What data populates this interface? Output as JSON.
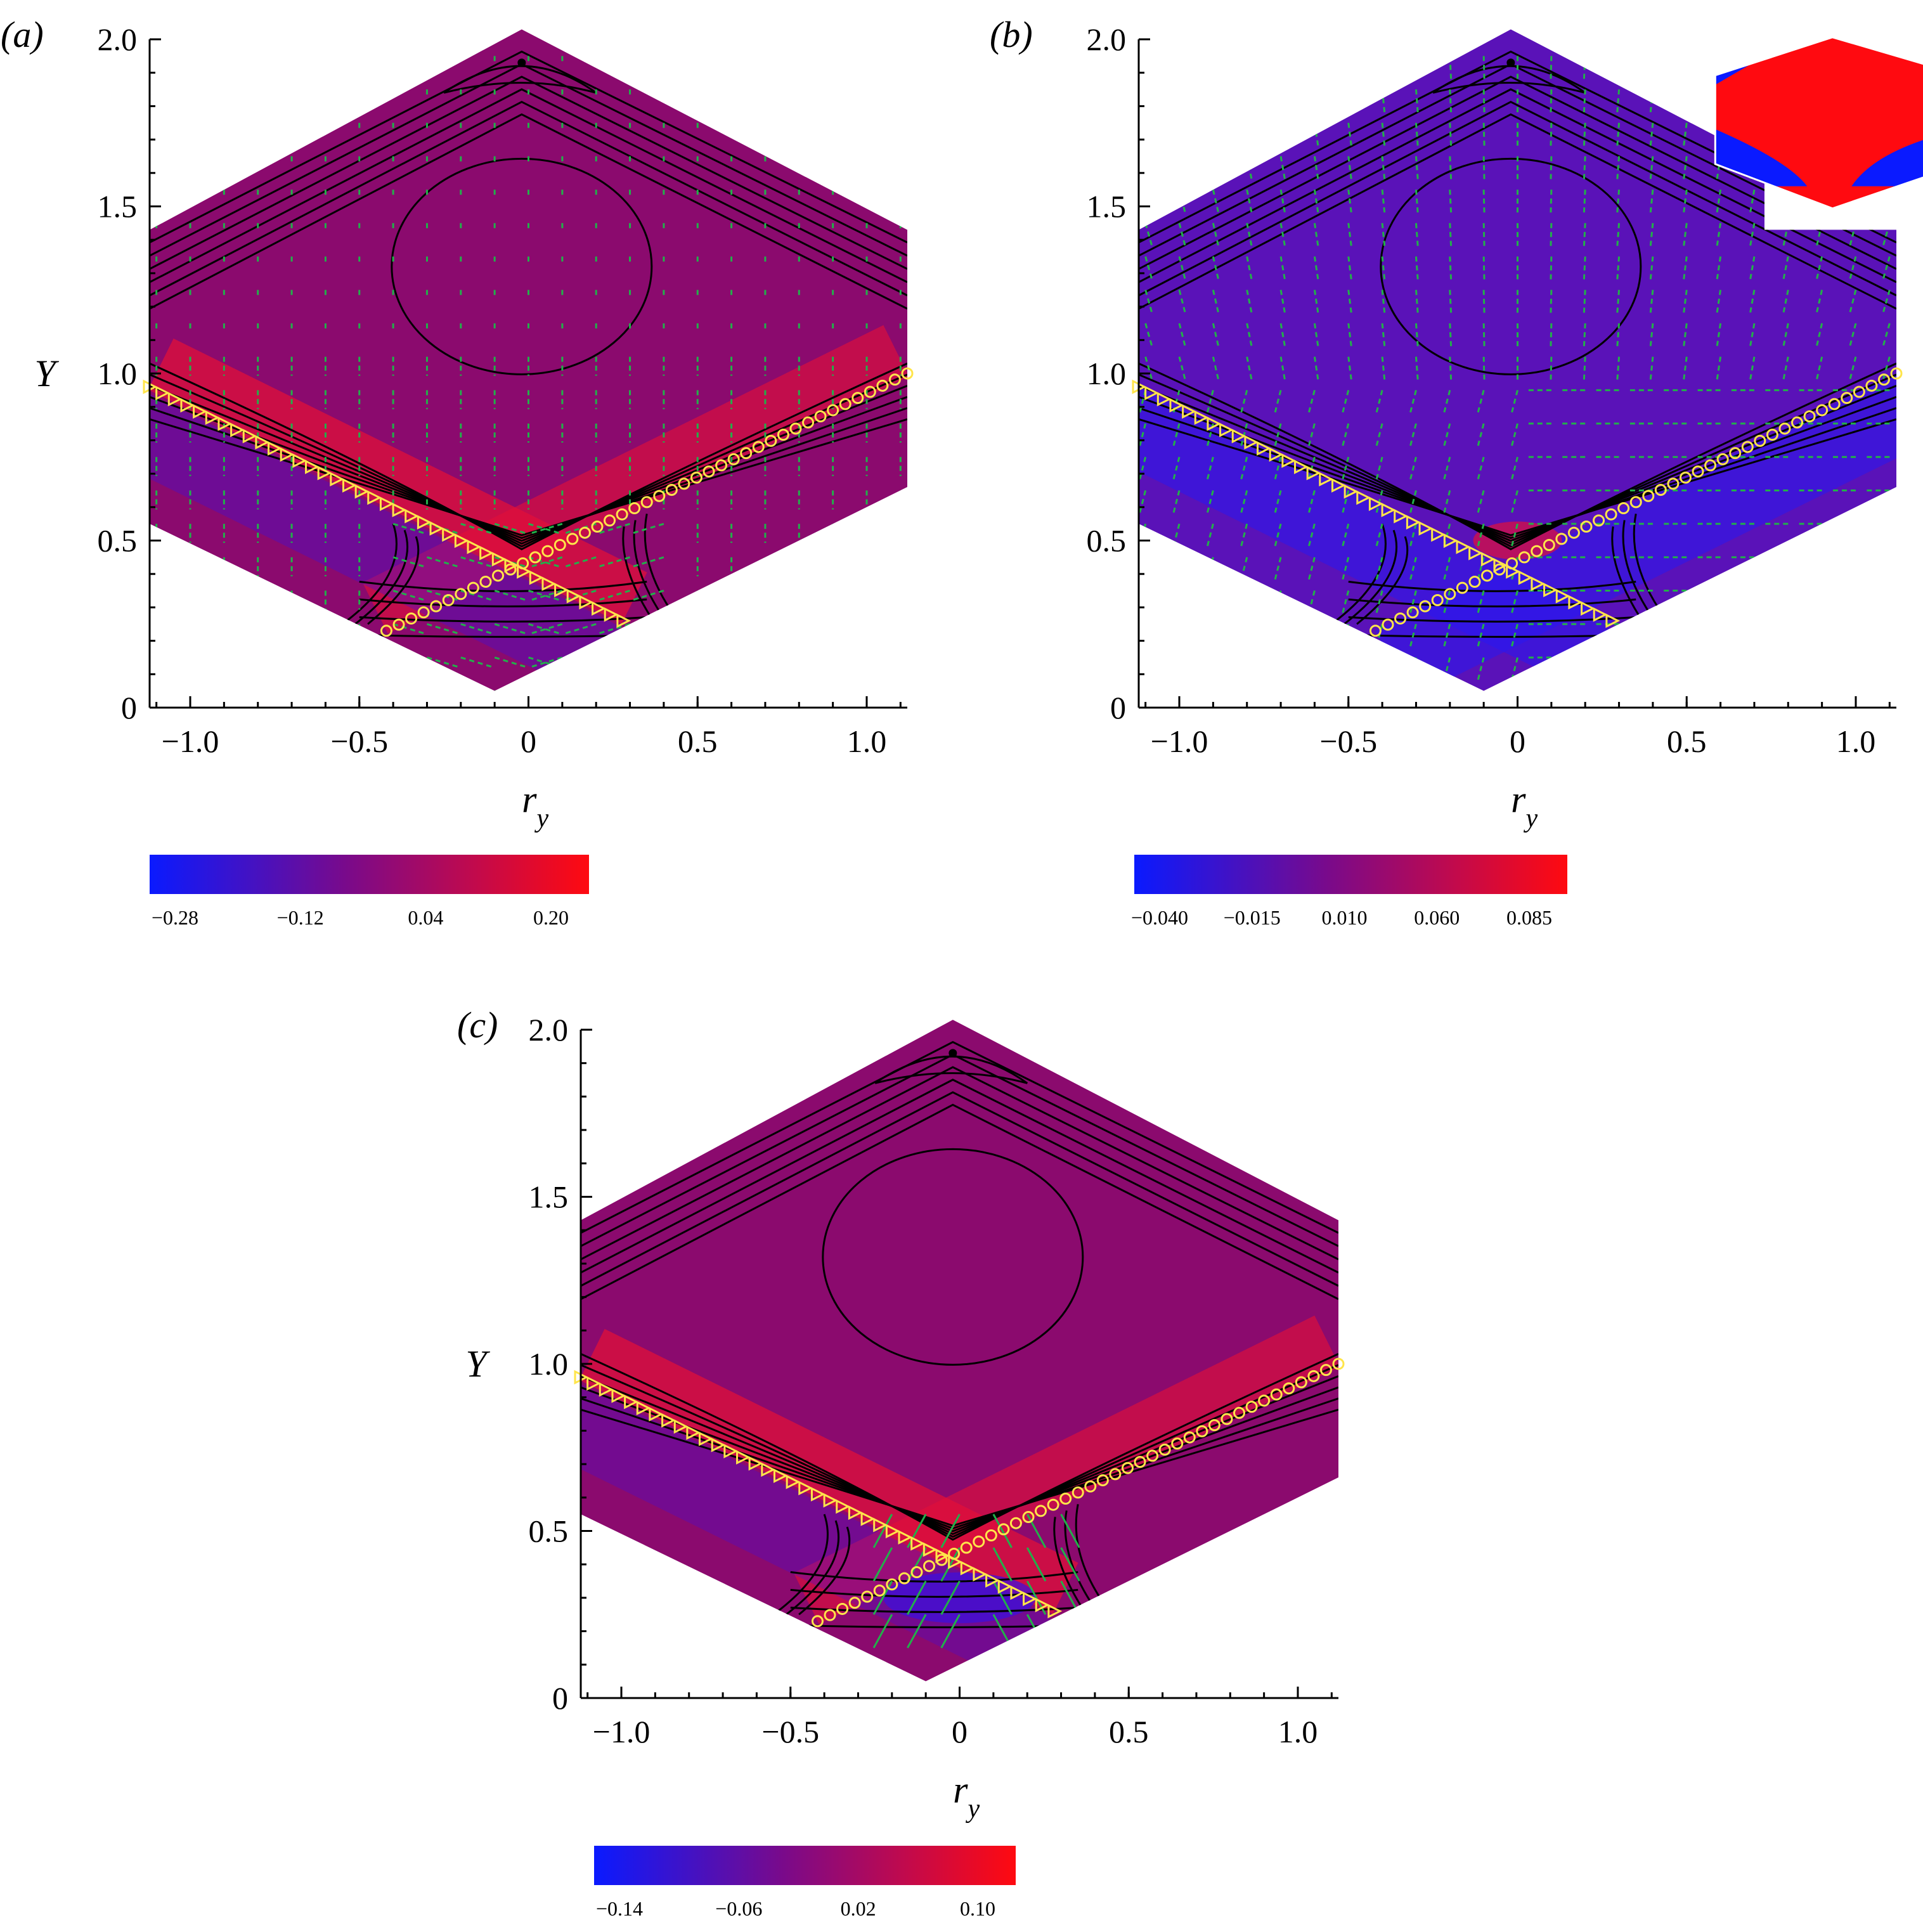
{
  "figure": {
    "panels": [
      {
        "id": "a",
        "label": "(a)",
        "ylabel": "Y",
        "xlabel": "r",
        "xlabel_sub": "y",
        "x_ticks": [
          "−1.0",
          "−0.5",
          "0",
          "0.5",
          "1.0"
        ],
        "x_tick_values": [
          -1.0,
          -0.5,
          0,
          0.5,
          1.0
        ],
        "y_ticks": [
          "0",
          "0.5",
          "1.0",
          "1.5",
          "2.0"
        ],
        "y_tick_values": [
          0,
          0.5,
          1.0,
          1.5,
          2.0
        ],
        "colorbar_labels": [
          "−0.28",
          "−0.12",
          "0.04",
          "0.20"
        ],
        "has_inset": false,
        "vector_strength": "small-top, strong-bottom"
      },
      {
        "id": "b",
        "label": "(b)",
        "ylabel": "",
        "xlabel": "r",
        "xlabel_sub": "y",
        "x_ticks": [
          "−1.0",
          "−0.5",
          "0",
          "0.5",
          "1.0"
        ],
        "x_tick_values": [
          -1.0,
          -0.5,
          0,
          0.5,
          1.0
        ],
        "y_ticks": [
          "0",
          "0.5",
          "1.0",
          "1.5",
          "2.0"
        ],
        "y_tick_values": [
          0,
          0.5,
          1.0,
          1.5,
          2.0
        ],
        "colorbar_labels": [
          "−0.040",
          "−0.015",
          "0.010",
          "0.060",
          "0.085"
        ],
        "has_inset": true,
        "vector_strength": "uniform"
      },
      {
        "id": "c",
        "label": "(c)",
        "ylabel": "Y",
        "xlabel": "r",
        "xlabel_sub": "y",
        "x_ticks": [
          "−1.0",
          "−0.5",
          "0",
          "0.5",
          "1.0"
        ],
        "x_tick_values": [
          -1.0,
          -0.5,
          0,
          0.5,
          1.0
        ],
        "y_ticks": [
          "0",
          "0.5",
          "1.0",
          "1.5",
          "2.0"
        ],
        "y_tick_values": [
          0,
          0.5,
          1.0,
          1.5,
          2.0
        ],
        "colorbar_labels": [
          "−0.14",
          "−0.06",
          "0.02",
          "0.10"
        ],
        "has_inset": false,
        "vector_strength": "bottom-center-only"
      }
    ],
    "colors": {
      "field_background": "#8b0a6e",
      "field_blue": "#3a10e0",
      "field_red": "#e0103a",
      "contour": "#000000",
      "vectors": "#22b04a",
      "markers": "#ffe54a",
      "colorbar_low": "#0a1aff",
      "colorbar_mid": "#7a0a8a",
      "colorbar_high": "#ff0a10"
    },
    "chart_data": {
      "type": "heatmap",
      "description_keys": [
        "contour lines",
        "vector field",
        "triangle markers",
        "circle markers"
      ],
      "x_range": [
        -1.12,
        1.12
      ],
      "y_range": [
        0,
        2.0
      ],
      "domain_vertices": [
        [
          -1.12,
          1.43
        ],
        [
          -0.02,
          2.03
        ],
        [
          1.12,
          1.43
        ],
        [
          1.12,
          0.66
        ],
        [
          -0.1,
          0.05
        ],
        [
          -1.12,
          0.55
        ]
      ],
      "triangle_markers_line": {
        "from": [
          -1.12,
          0.96
        ],
        "to": [
          0.28,
          0.26
        ]
      },
      "circle_markers_line": {
        "from": [
          -0.42,
          0.23
        ],
        "to": [
          1.12,
          1.0
        ]
      }
    }
  }
}
